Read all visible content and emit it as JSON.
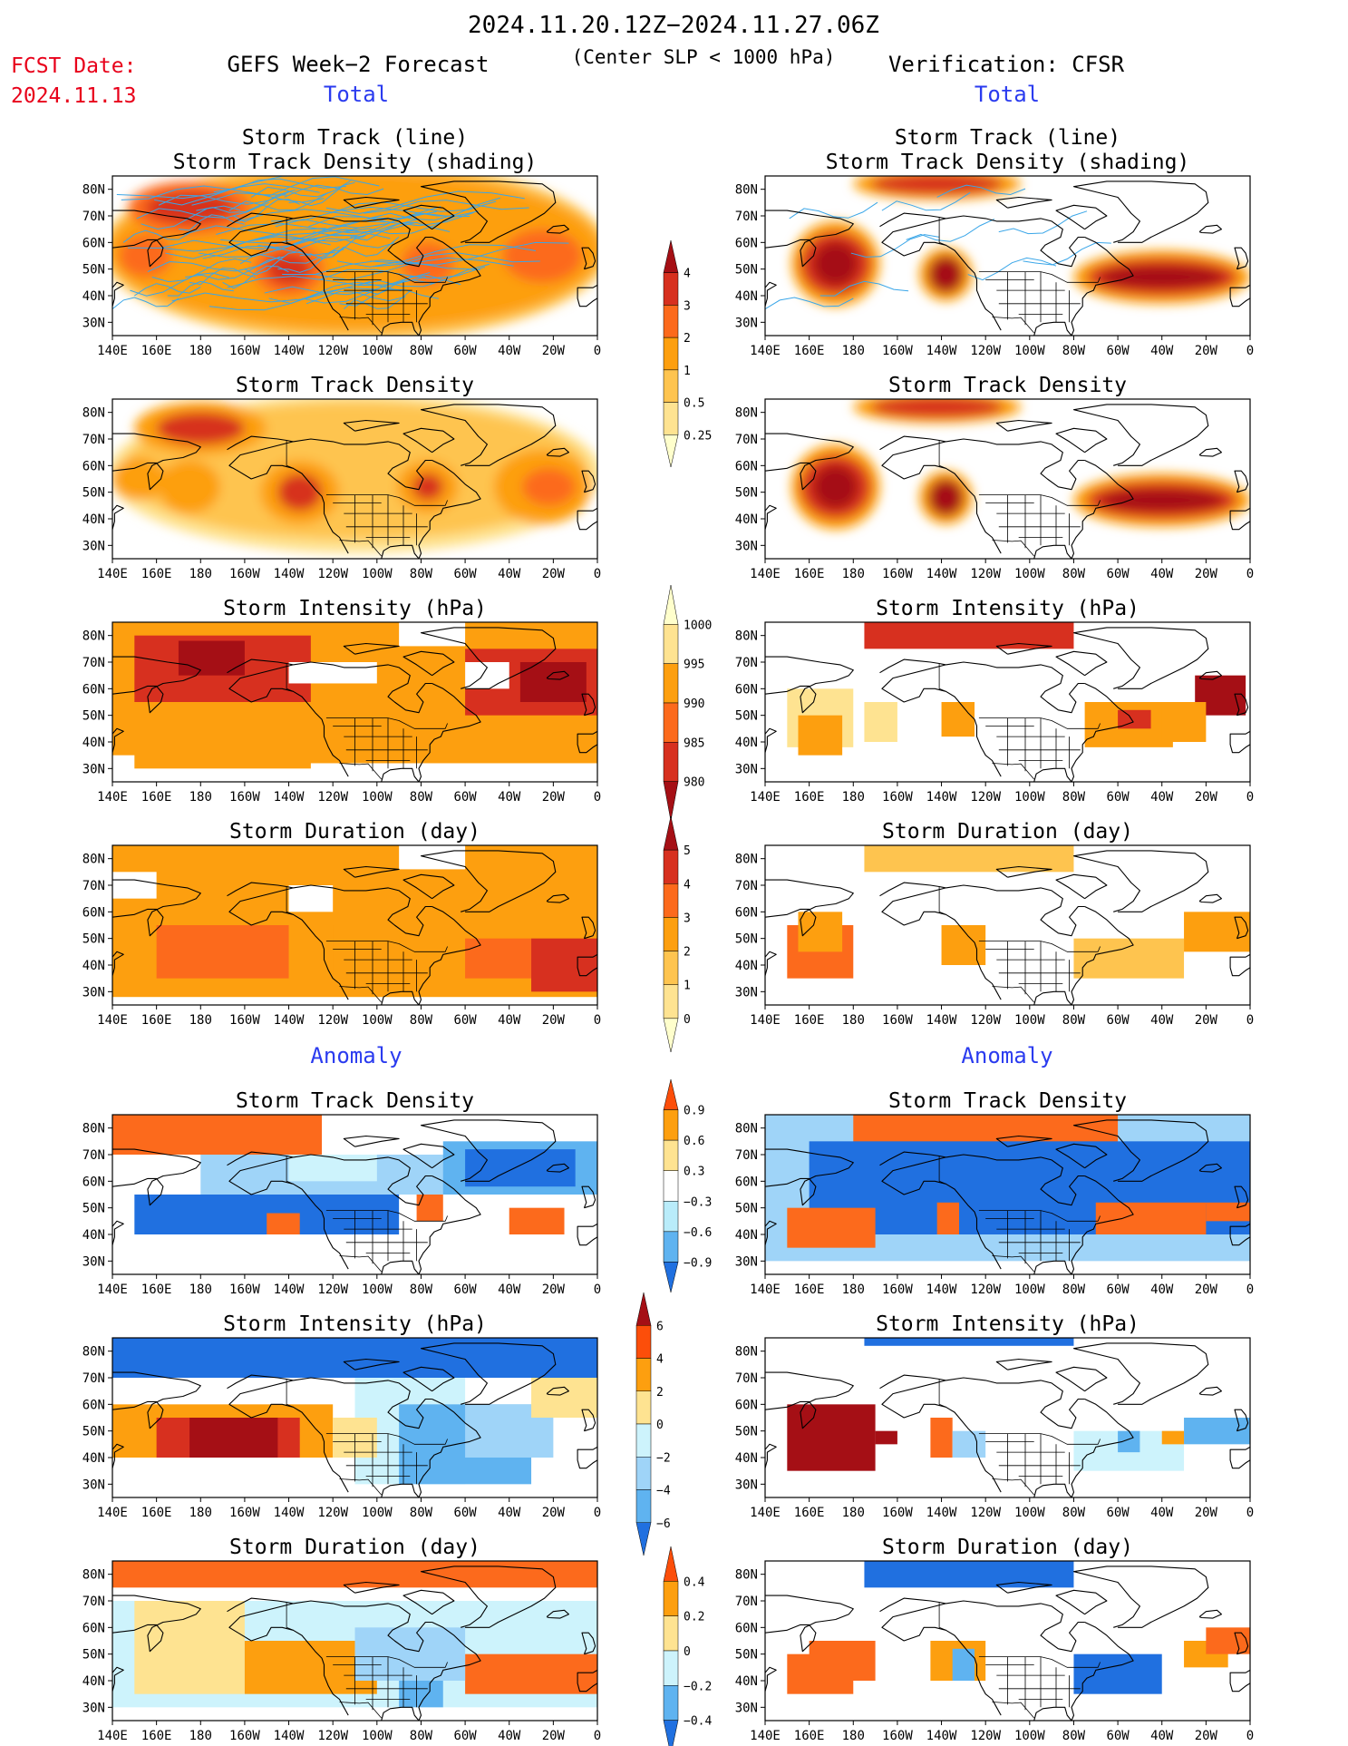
{
  "header": {
    "date_range": "2024.11.20.12Z−2024.11.27.06Z",
    "fcst_label": "FCST Date:",
    "fcst_date": "2024.11.13",
    "forecast_title": "GEFS Week−2 Forecast",
    "criteria": "(Center SLP < 1000 hPa)",
    "verification": "Verification: CFSR",
    "total_label": "Total",
    "anomaly_label": "Anomaly"
  },
  "panel_titles": {
    "track_line": "Storm Track (line)",
    "track_shading": "Storm Track Density (shading)",
    "density": "Storm Track Density",
    "intensity": "Storm Intensity (hPa)",
    "duration": "Storm Duration (day)"
  },
  "axes": {
    "lon_ticks": [
      "140E",
      "160E",
      "180",
      "160W",
      "140W",
      "120W",
      "100W",
      "80W",
      "60W",
      "40W",
      "20W",
      "0"
    ],
    "lat_ticks": [
      "80N",
      "70N",
      "60N",
      "50N",
      "40N",
      "30N"
    ]
  },
  "colorbars": [
    {
      "name": "track-density-total",
      "labels": [
        "4",
        "3",
        "2",
        "1",
        "0.5",
        "0.25"
      ],
      "colors": [
        "#a50f15",
        "#d7301f",
        "#fc6a1c",
        "#fd9f0f",
        "#fec44f",
        "#fee391",
        "#ffffcc"
      ]
    },
    {
      "name": "intensity-total",
      "labels": [
        "1000",
        "995",
        "990",
        "985",
        "980"
      ],
      "colors": [
        "#ffffcc",
        "#fee391",
        "#fd9f0f",
        "#fc6a1c",
        "#d7301f",
        "#a50f15"
      ]
    },
    {
      "name": "duration-total",
      "labels": [
        "5",
        "4",
        "3",
        "2",
        "1",
        "0"
      ],
      "colors": [
        "#a50f15",
        "#d7301f",
        "#fc6a1c",
        "#fd9f0f",
        "#fec44f",
        "#fee391",
        "#ffffcc"
      ]
    },
    {
      "name": "density-anomaly",
      "labels": [
        "0.9",
        "0.6",
        "0.3",
        "−0.3",
        "−0.6",
        "−0.9"
      ],
      "colors": [
        "#fc4e0a",
        "#fd9f0f",
        "#fee391",
        "#ffffff",
        "#b9ecfa",
        "#5fb3f0",
        "#2070e0"
      ]
    },
    {
      "name": "intensity-anomaly",
      "labels": [
        "6",
        "4",
        "2",
        "0",
        "−2",
        "−4",
        "−6"
      ],
      "colors": [
        "#a50f15",
        "#fc4e0a",
        "#fd9f0f",
        "#fee391",
        "#cdf3fc",
        "#9fd4f8",
        "#5fb3f0",
        "#2070e0"
      ]
    },
    {
      "name": "duration-anomaly",
      "labels": [
        "0.4",
        "0.2",
        "0",
        "−0.2",
        "−0.4"
      ],
      "colors": [
        "#fc4e0a",
        "#fd9f0f",
        "#fee391",
        "#cdf3fc",
        "#5fb3f0",
        "#2070e0"
      ]
    }
  ],
  "palette": {
    "lvl1": "#ffffcc",
    "lvl2": "#fee391",
    "lvl3": "#fec44f",
    "lvl4": "#fd9f0f",
    "lvl5": "#fc6a1c",
    "lvl6": "#d7301f",
    "lvl7": "#a50f15",
    "neg1": "#cdf3fc",
    "neg2": "#9fd4f8",
    "neg3": "#5fb3f0",
    "neg4": "#2070e0",
    "track_blue": "#3aa6e8",
    "red_text": "#e8001a",
    "blue_text": "#2a3bef"
  }
}
